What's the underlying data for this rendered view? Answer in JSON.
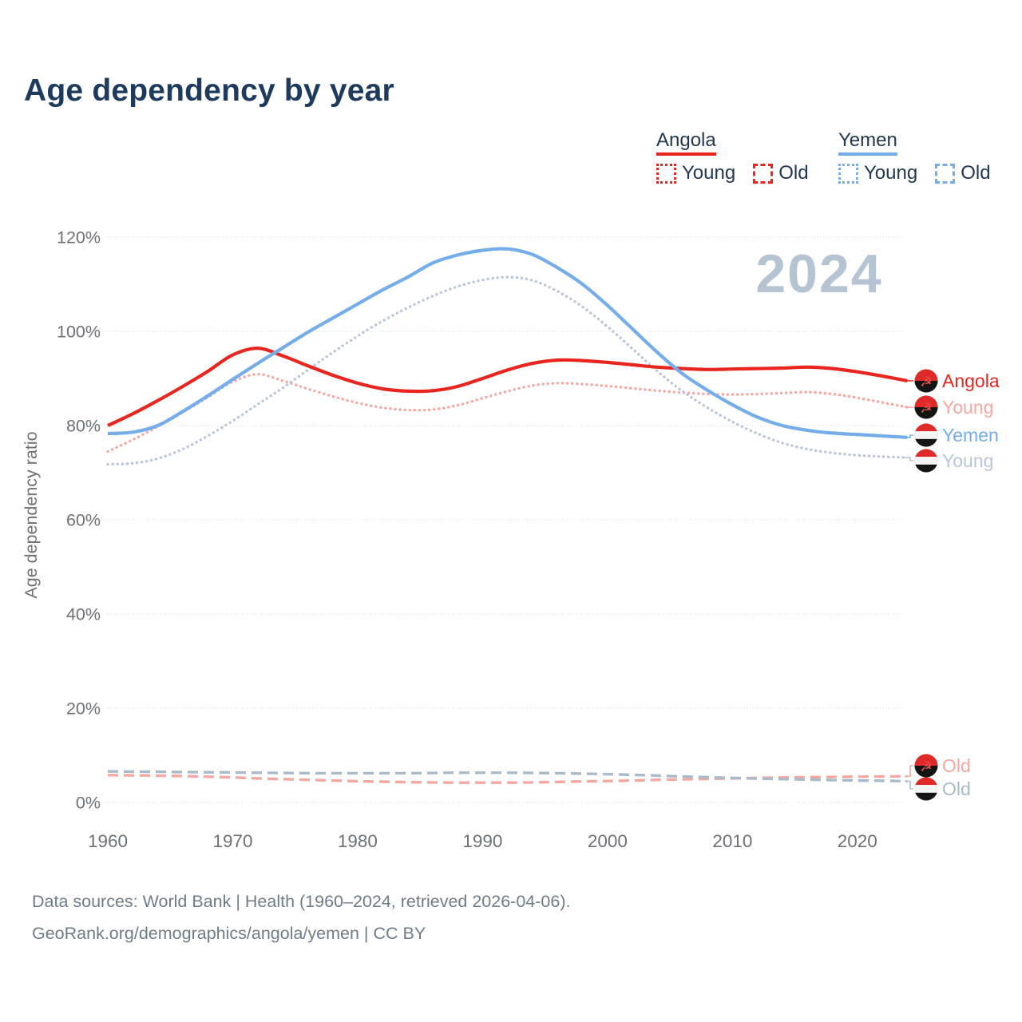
{
  "title": "Age dependency by year",
  "watermark": "2024",
  "colors": {
    "angola": "#e8251f",
    "angola_light": "#f5a8a2",
    "yemen": "#74ade9",
    "yemen_young": "#b9c5d9",
    "yemen_old": "#a9bac9",
    "title_text": "#1e3a5c",
    "legend_text": "#223750",
    "axis_text": "#6d7074",
    "grid": "#c9cdd2",
    "watermark": "#b5c3d3",
    "footer_text": "#6e7c87"
  },
  "legend": {
    "groups": [
      {
        "name": "Angola",
        "color": "#e8251f",
        "items": [
          {
            "label": "Young",
            "dash": "dotted"
          },
          {
            "label": "Old",
            "dash": "dashed"
          }
        ]
      },
      {
        "name": "Yemen",
        "color": "#74ade9",
        "items": [
          {
            "label": "Young",
            "dash": "dotted"
          },
          {
            "label": "Old",
            "dash": "dashed"
          }
        ]
      }
    ]
  },
  "right_labels": [
    {
      "text": "Angola",
      "flag": "angola",
      "color": "#e8251f",
      "series": "Angola"
    },
    {
      "text": "Young",
      "flag": "angola",
      "color": "#f5a8a2",
      "series": "Angola Young"
    },
    {
      "text": "Yemen",
      "flag": "yemen",
      "color": "#74ade9",
      "series": "Yemen"
    },
    {
      "text": "Young",
      "flag": "yemen",
      "color": "#b9c5d9",
      "series": "Yemen Young"
    },
    {
      "text": "Old",
      "flag": "angola",
      "color": "#f5a8a2",
      "series": "Angola Old"
    },
    {
      "text": "Old",
      "flag": "yemen",
      "color": "#a9bac9",
      "series": "Yemen Old"
    }
  ],
  "footer": {
    "line1": "Data sources: World Bank | Health (1960–2024, retrieved 2026-04-06).",
    "line2": "GeoRank.org/demographics/angola/yemen | CC BY"
  },
  "chart_data": {
    "type": "line",
    "title": "Age dependency by year",
    "xlabel": "",
    "ylabel": "Age dependency ratio",
    "xlim": [
      1960,
      2024
    ],
    "ylim": [
      0,
      120
    ],
    "x_ticks": [
      1960,
      1970,
      1980,
      1990,
      2000,
      2010,
      2020
    ],
    "y_ticks": [
      0,
      20,
      40,
      60,
      80,
      100,
      120
    ],
    "y_tick_suffix": "%",
    "grid": true,
    "legend_position": "top-right",
    "x": [
      1960,
      1962,
      1964,
      1966,
      1968,
      1970,
      1972,
      1974,
      1976,
      1978,
      1980,
      1982,
      1984,
      1986,
      1988,
      1990,
      1992,
      1994,
      1996,
      1998,
      2000,
      2002,
      2004,
      2006,
      2008,
      2010,
      2012,
      2014,
      2016,
      2018,
      2020,
      2022,
      2024
    ],
    "series": [
      {
        "name": "Angola",
        "country": "Angola",
        "measure": "Total",
        "style": "solid",
        "color": "#e8251f",
        "values": [
          80.0,
          82.5,
          85.3,
          88.3,
          91.5,
          95.0,
          96.4,
          94.8,
          92.7,
          90.7,
          89.0,
          87.8,
          87.3,
          87.4,
          88.3,
          90.0,
          91.8,
          93.2,
          93.9,
          93.8,
          93.4,
          92.9,
          92.4,
          92.1,
          91.9,
          92.0,
          92.1,
          92.2,
          92.4,
          92.1,
          91.4,
          90.5,
          89.5
        ]
      },
      {
        "name": "Angola Young",
        "country": "Angola",
        "measure": "Young",
        "style": "dotted",
        "color": "#f5a8a2",
        "values": [
          74.5,
          77.0,
          79.8,
          82.8,
          86.0,
          89.3,
          90.9,
          89.5,
          87.8,
          86.2,
          84.8,
          83.8,
          83.3,
          83.4,
          84.3,
          85.8,
          87.3,
          88.5,
          89.0,
          88.8,
          88.4,
          87.9,
          87.4,
          87.0,
          86.7,
          86.6,
          86.7,
          86.9,
          87.1,
          86.7,
          85.9,
          84.9,
          83.9
        ]
      },
      {
        "name": "Angola Old",
        "country": "Angola",
        "measure": "Old",
        "style": "dashed",
        "color": "#f5a8a2",
        "values": [
          5.8,
          5.75,
          5.7,
          5.6,
          5.45,
          5.3,
          5.1,
          4.95,
          4.8,
          4.65,
          4.5,
          4.4,
          4.3,
          4.25,
          4.2,
          4.2,
          4.2,
          4.25,
          4.35,
          4.45,
          4.55,
          4.65,
          4.8,
          4.9,
          5.0,
          5.1,
          5.2,
          5.3,
          5.35,
          5.4,
          5.45,
          5.5,
          5.55
        ]
      },
      {
        "name": "Yemen",
        "country": "Yemen",
        "measure": "Total",
        "style": "solid",
        "color": "#74ade9",
        "values": [
          78.3,
          78.6,
          80.0,
          83.0,
          86.3,
          89.8,
          93.2,
          96.5,
          99.8,
          102.8,
          105.8,
          108.8,
          111.5,
          114.5,
          116.2,
          117.2,
          117.5,
          116.3,
          113.5,
          110.0,
          105.5,
          100.5,
          95.5,
          91.0,
          87.5,
          84.4,
          81.8,
          80.0,
          79.0,
          78.4,
          78.1,
          77.8,
          77.5
        ]
      },
      {
        "name": "Yemen Young",
        "country": "Yemen",
        "measure": "Young",
        "style": "dotted",
        "color": "#b9c5d9",
        "values": [
          71.8,
          72.0,
          73.0,
          75.0,
          77.8,
          81.0,
          84.5,
          88.0,
          91.8,
          95.5,
          99.0,
          102.2,
          105.0,
          107.5,
          109.5,
          110.9,
          111.5,
          110.8,
          108.5,
          105.2,
          101.0,
          96.3,
          91.5,
          87.3,
          83.8,
          80.8,
          78.3,
          76.3,
          75.0,
          74.2,
          73.7,
          73.4,
          73.2
        ]
      },
      {
        "name": "Yemen Old",
        "country": "Yemen",
        "measure": "Old",
        "style": "dashed",
        "color": "#a9bac9",
        "values": [
          6.6,
          6.55,
          6.5,
          6.45,
          6.4,
          6.35,
          6.3,
          6.25,
          6.2,
          6.2,
          6.2,
          6.2,
          6.2,
          6.25,
          6.3,
          6.3,
          6.3,
          6.25,
          6.2,
          6.1,
          6.0,
          5.85,
          5.7,
          5.5,
          5.35,
          5.2,
          5.05,
          4.95,
          4.85,
          4.75,
          4.65,
          4.6,
          4.5
        ]
      }
    ]
  }
}
